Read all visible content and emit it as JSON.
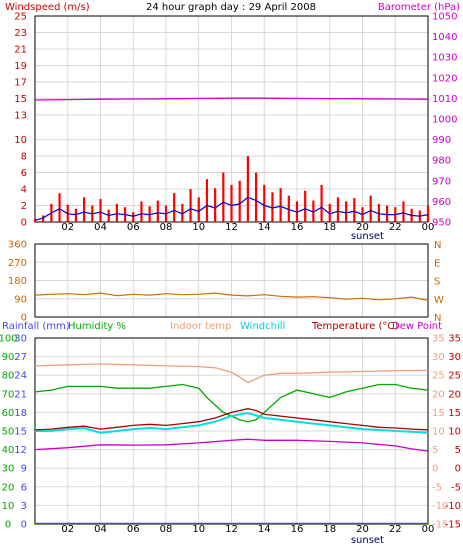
{
  "chart_data": [
    {
      "type": "line",
      "title": "24 hour graph day : 29 April 2008",
      "left_axis_label": "Windspeed (m/s)",
      "right_axis_label": "Barometer (hPa)",
      "x_ticks": [
        "02",
        "04",
        "06",
        "08",
        "10",
        "12",
        "14",
        "16",
        "18",
        "20",
        "22",
        "00"
      ],
      "x_marker": "sunset",
      "x_range_hours": [
        0,
        24
      ],
      "left_ticks": [
        0,
        2,
        4,
        6,
        8,
        10,
        13,
        15,
        17,
        19,
        21,
        23,
        25
      ],
      "left_range": [
        0,
        25
      ],
      "right_ticks": [
        950,
        960,
        970,
        980,
        990,
        1000,
        1010,
        1020,
        1030,
        1040,
        1050
      ],
      "right_range": [
        950,
        1050
      ],
      "colors": {
        "gust": "#ff0000",
        "wind": "#0000cc",
        "baro": "#cc00cc",
        "grid": "#d8d8d8"
      },
      "series": [
        {
          "key": "gust",
          "hours": [
            0,
            0.5,
            1,
            1.5,
            2,
            2.5,
            3,
            3.5,
            4,
            4.5,
            5,
            5.5,
            6,
            6.5,
            7,
            7.5,
            8,
            8.5,
            9,
            9.5,
            10,
            10.5,
            11,
            11.5,
            12,
            12.5,
            13,
            13.5,
            14,
            14.5,
            15,
            15.5,
            16,
            16.5,
            17,
            17.5,
            18,
            18.5,
            19,
            19.5,
            20,
            20.5,
            21,
            21.5,
            22,
            22.5,
            23,
            23.5,
            24
          ],
          "values": [
            0.4,
            0.8,
            2.2,
            3.5,
            2.1,
            1.6,
            3.0,
            2.0,
            2.8,
            1.5,
            2.2,
            1.8,
            1.2,
            2.5,
            1.9,
            2.6,
            2.0,
            3.5,
            2.2,
            4.0,
            3.0,
            5.2,
            4.1,
            6.0,
            4.5,
            5.0,
            8.0,
            6.0,
            4.5,
            3.6,
            4.1,
            3.2,
            2.5,
            3.8,
            2.6,
            4.5,
            2.2,
            3.0,
            2.5,
            2.9,
            1.8,
            3.2,
            2.2,
            2.0,
            1.8,
            2.5,
            1.6,
            1.4,
            2.0
          ]
        },
        {
          "key": "wind",
          "hours": [
            0,
            0.5,
            1,
            1.5,
            2,
            2.5,
            3,
            3.5,
            4,
            4.5,
            5,
            5.5,
            6,
            6.5,
            7,
            7.5,
            8,
            8.5,
            9,
            9.5,
            10,
            10.5,
            11,
            11.5,
            12,
            12.5,
            13,
            13.5,
            14,
            14.5,
            15,
            15.5,
            16,
            16.5,
            17,
            17.5,
            18,
            18.5,
            19,
            19.5,
            20,
            20.5,
            21,
            21.5,
            22,
            22.5,
            23,
            23.5,
            24
          ],
          "values": [
            0.2,
            0.5,
            1.1,
            1.6,
            1.0,
            0.9,
            1.2,
            1.0,
            1.2,
            0.8,
            1.0,
            0.9,
            0.7,
            1.0,
            0.9,
            1.1,
            1.0,
            1.4,
            1.0,
            1.6,
            1.3,
            2.0,
            1.7,
            2.4,
            2.0,
            2.2,
            3.0,
            2.6,
            2.0,
            1.7,
            1.9,
            1.5,
            1.2,
            1.6,
            1.2,
            1.8,
            1.0,
            1.3,
            1.1,
            1.3,
            0.9,
            1.4,
            1.0,
            0.9,
            0.9,
            1.1,
            0.8,
            0.7,
            0.9
          ]
        },
        {
          "key": "baro",
          "axis": "right",
          "hours": [
            0,
            2,
            4,
            6,
            8,
            10,
            12,
            14,
            16,
            18,
            20,
            22,
            24
          ],
          "values": [
            1009.2,
            1009.4,
            1009.6,
            1009.7,
            1009.8,
            1010.0,
            1010.1,
            1010.1,
            1010.0,
            1009.9,
            1009.8,
            1009.7,
            1009.6
          ]
        }
      ]
    },
    {
      "type": "line",
      "title": "",
      "x_ticks": [
        "02",
        "04",
        "06",
        "08",
        "10",
        "12",
        "14",
        "16",
        "18",
        "20",
        "22",
        "00"
      ],
      "left_ticks": [
        0,
        90,
        180,
        270,
        360
      ],
      "left_range": [
        0,
        360
      ],
      "right_labels": [
        "N",
        "W",
        "S",
        "E",
        "N"
      ],
      "colors": {
        "dir": "#c87000"
      },
      "series": [
        {
          "key": "dir",
          "hours": [
            0,
            1,
            2,
            3,
            4,
            5,
            6,
            7,
            8,
            9,
            10,
            11,
            12,
            13,
            14,
            15,
            16,
            17,
            18,
            19,
            20,
            21,
            22,
            23,
            24
          ],
          "values": [
            108,
            112,
            115,
            110,
            118,
            105,
            112,
            108,
            115,
            110,
            112,
            118,
            108,
            104,
            110,
            102,
            98,
            100,
            95,
            88,
            92,
            85,
            90,
            98,
            82
          ]
        }
      ]
    },
    {
      "type": "line",
      "title": "",
      "labels": {
        "rainfall": "Rainfall (mm)",
        "humidity": "Humidity %",
        "indoor": "Indoor temp",
        "windchill": "Windchill",
        "temperature": "Temperature (°C)",
        "dewpoint": "Dew Point"
      },
      "x_ticks": [
        "02",
        "04",
        "06",
        "08",
        "10",
        "12",
        "14",
        "16",
        "18",
        "20",
        "22",
        "00"
      ],
      "x_marker": "sunset",
      "rain_ticks": [
        0,
        3,
        6,
        9,
        12,
        15,
        18,
        21,
        24,
        27,
        30
      ],
      "humidity_ticks": [
        0,
        10,
        20,
        30,
        40,
        50,
        60,
        70,
        80,
        90,
        100
      ],
      "temp_ticks": [
        -15,
        -10,
        -5,
        0,
        5,
        10,
        15,
        20,
        25,
        30,
        35
      ],
      "temp_range": [
        -15,
        35
      ],
      "colors": {
        "rainfall": "#4444ff",
        "humidity": "#00aa00",
        "indoor": "#f0a080",
        "windchill": "#00e0e0",
        "temperature": "#aa0000",
        "dewpoint": "#cc00cc",
        "temp_axis": "#cc0000"
      },
      "series": [
        {
          "key": "indoor",
          "axis": "temp",
          "hours": [
            0,
            2,
            4,
            6,
            8,
            10,
            11,
            12,
            12.5,
            13,
            13.5,
            14,
            15,
            16,
            18,
            20,
            22,
            24
          ],
          "values": [
            27.5,
            27.8,
            28.0,
            27.8,
            27.5,
            27.3,
            27.0,
            25.8,
            24.5,
            23.0,
            24.0,
            25.0,
            25.5,
            25.5,
            25.8,
            26.0,
            26.2,
            26.3
          ]
        },
        {
          "key": "humidity",
          "axis": "humidity",
          "hours": [
            0,
            1,
            2,
            3,
            4,
            5,
            6,
            7,
            8,
            9,
            10,
            10.5,
            11,
            11.5,
            12,
            12.5,
            13,
            13.5,
            14,
            14.5,
            15,
            16,
            17,
            18,
            19,
            20,
            21,
            22,
            23,
            24
          ],
          "values": [
            71,
            72,
            74,
            74,
            74,
            73,
            73,
            73,
            74,
            75,
            73,
            68,
            64,
            60,
            58,
            56,
            55,
            56,
            60,
            64,
            68,
            72,
            70,
            68,
            71,
            73,
            75,
            75,
            73,
            72
          ]
        },
        {
          "key": "windchill",
          "axis": "temp",
          "hours": [
            0,
            1,
            2,
            3,
            4,
            5,
            6,
            7,
            8,
            9,
            10,
            11,
            12,
            12.5,
            13,
            13.5,
            14,
            15,
            16,
            17,
            18,
            19,
            20,
            21,
            22,
            23,
            24
          ],
          "values": [
            10.0,
            10.0,
            10.5,
            10.8,
            9.5,
            10.0,
            10.5,
            10.8,
            10.5,
            11.0,
            11.5,
            12.5,
            14.0,
            14.5,
            14.8,
            14.2,
            13.5,
            13.0,
            12.5,
            12.0,
            11.5,
            11.0,
            10.5,
            10.3,
            10.0,
            9.8,
            9.5
          ]
        },
        {
          "key": "temperature",
          "axis": "temp",
          "hours": [
            0,
            1,
            2,
            3,
            4,
            5,
            6,
            7,
            8,
            9,
            10,
            11,
            12,
            12.5,
            13,
            13.5,
            14,
            15,
            16,
            17,
            18,
            19,
            20,
            21,
            22,
            23,
            24
          ],
          "values": [
            10.3,
            10.5,
            11.0,
            11.3,
            10.5,
            11.0,
            11.5,
            11.8,
            11.5,
            12.0,
            12.5,
            13.5,
            15.0,
            15.5,
            16.0,
            15.5,
            14.5,
            14.0,
            13.5,
            13.0,
            12.5,
            12.0,
            11.5,
            11.0,
            10.8,
            10.5,
            10.3
          ]
        },
        {
          "key": "dewpoint",
          "axis": "temp",
          "hours": [
            0,
            2,
            4,
            6,
            8,
            10,
            12,
            13,
            14,
            16,
            18,
            20,
            22,
            23,
            24
          ],
          "values": [
            5.0,
            5.5,
            6.3,
            6.2,
            6.3,
            6.8,
            7.5,
            7.8,
            7.5,
            7.5,
            7.2,
            6.8,
            6.0,
            5.2,
            4.6
          ]
        },
        {
          "key": "rainfall",
          "axis": "rain",
          "hours": [
            0,
            24
          ],
          "values": [
            0.1,
            0.1
          ]
        }
      ]
    }
  ]
}
